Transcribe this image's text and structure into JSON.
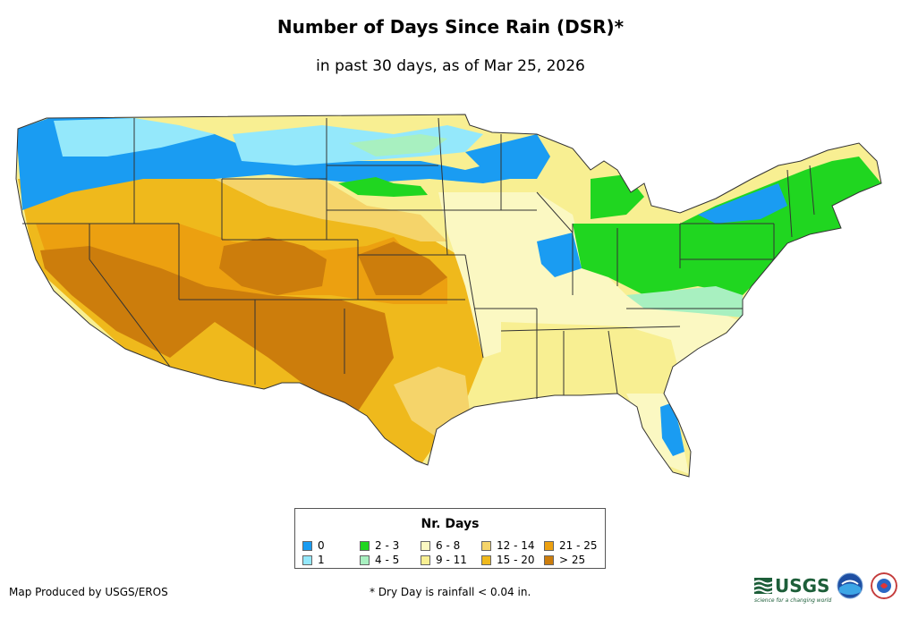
{
  "header": {
    "title": "Number of Days Since Rain (DSR)*",
    "subtitle": "in past 30 days, as of Mar 25, 2026"
  },
  "legend": {
    "title": "Nr. Days",
    "items": [
      {
        "label": "0",
        "color": "#1a9cf2"
      },
      {
        "label": "1",
        "color": "#94e8fb"
      },
      {
        "label": "2 - 3",
        "color": "#20d620"
      },
      {
        "label": "4 - 5",
        "color": "#a8f0c0"
      },
      {
        "label": "6 - 8",
        "color": "#fbf8c2"
      },
      {
        "label": "9 - 11",
        "color": "#f8ef92"
      },
      {
        "label": "12 - 14",
        "color": "#f5d46a"
      },
      {
        "label": "15 - 20",
        "color": "#efb91c"
      },
      {
        "label": "21 - 25",
        "color": "#eca010"
      },
      {
        "label": "> 25",
        "color": "#cc7d0c"
      }
    ]
  },
  "footer": {
    "credit": "Map Produced by USGS/EROS",
    "footnote": "* Dry Day is rainfall < 0.04 in.",
    "usgs_logo": "USGS",
    "usgs_tagline": "science for a changing world"
  },
  "logos": [
    "usgs-logo",
    "noaa-logo",
    "nws-logo"
  ]
}
